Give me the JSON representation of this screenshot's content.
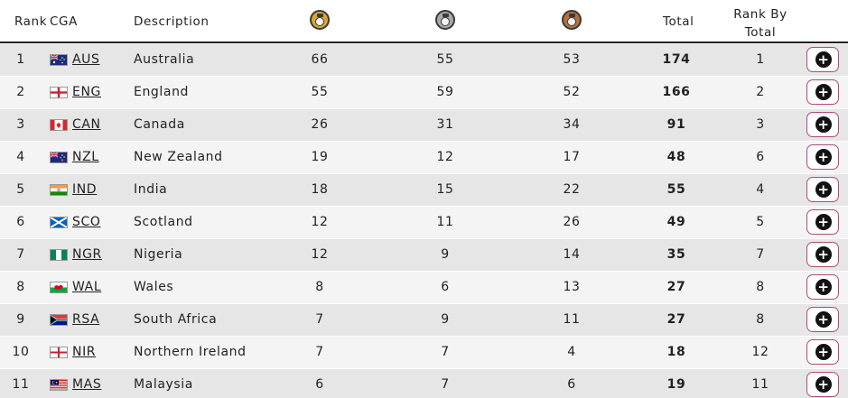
{
  "header": {
    "rank": "Rank",
    "cga": "CGA",
    "description": "Description",
    "gold_icon": "gold-medal-icon",
    "silver_icon": "silver-medal-icon",
    "bronze_icon": "bronze-medal-icon",
    "total": "Total",
    "rank_by_total_line1": "Rank By",
    "rank_by_total_line2": "Total"
  },
  "colors": {
    "gold": "#d9a62a",
    "silver": "#a9a9a9",
    "bronze": "#b4713a",
    "row_odd": "#e6e6e6",
    "row_even": "#f4f4f4",
    "button_border": "#b0487e"
  },
  "rows": [
    {
      "rank": "1",
      "flag_icon": "australia-flag-icon",
      "code": "AUS",
      "description": "Australia",
      "gold": "66",
      "silver": "55",
      "bronze": "53",
      "total": "174",
      "rank_by_total": "1",
      "expand_icon": "plus-circle-icon"
    },
    {
      "rank": "2",
      "flag_icon": "england-flag-icon",
      "code": "ENG",
      "description": "England",
      "gold": "55",
      "silver": "59",
      "bronze": "52",
      "total": "166",
      "rank_by_total": "2",
      "expand_icon": "plus-circle-icon"
    },
    {
      "rank": "3",
      "flag_icon": "canada-flag-icon",
      "code": "CAN",
      "description": "Canada",
      "gold": "26",
      "silver": "31",
      "bronze": "34",
      "total": "91",
      "rank_by_total": "3",
      "expand_icon": "plus-circle-icon"
    },
    {
      "rank": "4",
      "flag_icon": "new-zealand-flag-icon",
      "code": "NZL",
      "description": "New Zealand",
      "gold": "19",
      "silver": "12",
      "bronze": "17",
      "total": "48",
      "rank_by_total": "6",
      "expand_icon": "plus-circle-icon"
    },
    {
      "rank": "5",
      "flag_icon": "india-flag-icon",
      "code": "IND",
      "description": "India",
      "gold": "18",
      "silver": "15",
      "bronze": "22",
      "total": "55",
      "rank_by_total": "4",
      "expand_icon": "plus-circle-icon"
    },
    {
      "rank": "6",
      "flag_icon": "scotland-flag-icon",
      "code": "SCO",
      "description": "Scotland",
      "gold": "12",
      "silver": "11",
      "bronze": "26",
      "total": "49",
      "rank_by_total": "5",
      "expand_icon": "plus-circle-icon"
    },
    {
      "rank": "7",
      "flag_icon": "nigeria-flag-icon",
      "code": "NGR",
      "description": "Nigeria",
      "gold": "12",
      "silver": "9",
      "bronze": "14",
      "total": "35",
      "rank_by_total": "7",
      "expand_icon": "plus-circle-icon"
    },
    {
      "rank": "8",
      "flag_icon": "wales-flag-icon",
      "code": "WAL",
      "description": "Wales",
      "gold": "8",
      "silver": "6",
      "bronze": "13",
      "total": "27",
      "rank_by_total": "8",
      "expand_icon": "plus-circle-icon"
    },
    {
      "rank": "9",
      "flag_icon": "south-africa-flag-icon",
      "code": "RSA",
      "description": "South Africa",
      "gold": "7",
      "silver": "9",
      "bronze": "11",
      "total": "27",
      "rank_by_total": "8",
      "expand_icon": "plus-circle-icon"
    },
    {
      "rank": "10",
      "flag_icon": "northern-ireland-flag-icon",
      "code": "NIR",
      "description": "Northern Ireland",
      "gold": "7",
      "silver": "7",
      "bronze": "4",
      "total": "18",
      "rank_by_total": "12",
      "expand_icon": "plus-circle-icon"
    },
    {
      "rank": "11",
      "flag_icon": "malaysia-flag-icon",
      "code": "MAS",
      "description": "Malaysia",
      "gold": "6",
      "silver": "7",
      "bronze": "6",
      "total": "19",
      "rank_by_total": "11",
      "expand_icon": "plus-circle-icon"
    }
  ]
}
